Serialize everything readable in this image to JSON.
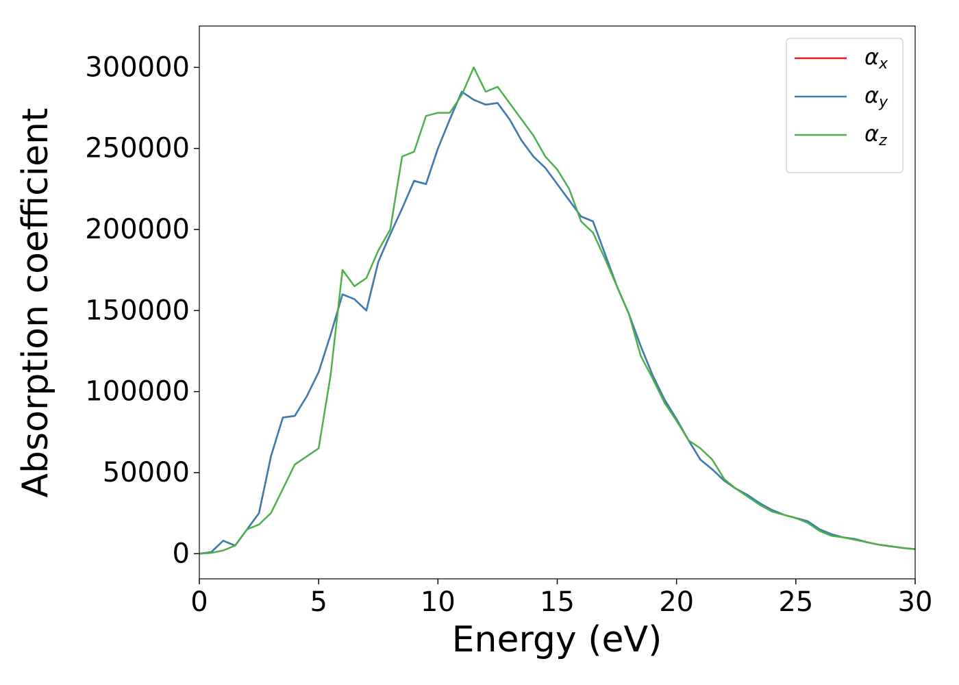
{
  "chart_data": {
    "type": "line",
    "xlabel": "Energy (eV)",
    "ylabel": "Absorption coefficient",
    "x": [
      0,
      0.5,
      1,
      1.5,
      2,
      2.5,
      3,
      3.5,
      4,
      4.5,
      5,
      5.5,
      6,
      6.5,
      7,
      7.5,
      8,
      8.5,
      9,
      9.5,
      10,
      10.5,
      11,
      11.5,
      12,
      12.5,
      13,
      13.5,
      14,
      14.5,
      15,
      15.5,
      16,
      16.5,
      17,
      17.5,
      18,
      18.5,
      19,
      19.5,
      20,
      20.5,
      21,
      21.5,
      22,
      22.5,
      23,
      23.5,
      24,
      24.5,
      25,
      25.5,
      26,
      26.5,
      27,
      27.5,
      28,
      28.5,
      29,
      29.5,
      30
    ],
    "series": [
      {
        "name": "αx",
        "color": "#e41a1c",
        "values": [
          0,
          1000,
          8000,
          5000,
          15000,
          25000,
          60000,
          84000,
          85000,
          97000,
          112000,
          135000,
          160000,
          157000,
          150000,
          180000,
          197000,
          213000,
          230000,
          228000,
          250000,
          268000,
          285000,
          280000,
          277000,
          278000,
          268000,
          255000,
          245000,
          238000,
          228000,
          218000,
          208000,
          205000,
          185000,
          165000,
          148000,
          128000,
          110000,
          95000,
          83000,
          70000,
          58000,
          52000,
          45000,
          40000,
          36000,
          31000,
          27000,
          24000,
          22000,
          20000,
          15000,
          12000,
          10000,
          9000,
          7000,
          5500,
          4500,
          3500,
          2800
        ]
      },
      {
        "name": "αy",
        "color": "#377eb8",
        "values": [
          0,
          1000,
          8000,
          5000,
          15000,
          25000,
          60000,
          84000,
          85000,
          97000,
          112000,
          135000,
          160000,
          157000,
          150000,
          180000,
          197000,
          213000,
          230000,
          228000,
          250000,
          268000,
          285000,
          280000,
          277000,
          278000,
          268000,
          255000,
          245000,
          238000,
          228000,
          218000,
          208000,
          205000,
          185000,
          165000,
          148000,
          128000,
          110000,
          95000,
          83000,
          70000,
          58000,
          52000,
          45000,
          40000,
          36000,
          31000,
          27000,
          24000,
          22000,
          20000,
          15000,
          12000,
          10000,
          9000,
          7000,
          5500,
          4500,
          3500,
          2800
        ]
      },
      {
        "name": "αz",
        "color": "#4daf4a",
        "values": [
          0,
          500,
          2000,
          5000,
          15000,
          18000,
          25000,
          40000,
          55000,
          60000,
          65000,
          110000,
          175000,
          165000,
          170000,
          187000,
          200000,
          245000,
          248000,
          270000,
          272000,
          272000,
          283000,
          300000,
          285000,
          288000,
          278000,
          268000,
          258000,
          245000,
          237000,
          225000,
          205000,
          198000,
          182000,
          165000,
          148000,
          122000,
          108000,
          93000,
          82000,
          70000,
          65000,
          58000,
          46000,
          40000,
          35000,
          30000,
          26000,
          24000,
          22000,
          19000,
          14000,
          11000,
          10000,
          8500,
          7000,
          5500,
          4500,
          3500,
          2800
        ]
      }
    ],
    "xlim": [
      0,
      30
    ],
    "ylim": [
      -15500,
      325500
    ],
    "xticks": [
      0,
      5,
      10,
      15,
      20,
      25,
      30
    ],
    "yticks": [
      0,
      50000,
      100000,
      150000,
      200000,
      250000,
      300000
    ],
    "grid": false,
    "legend": "upper right"
  }
}
